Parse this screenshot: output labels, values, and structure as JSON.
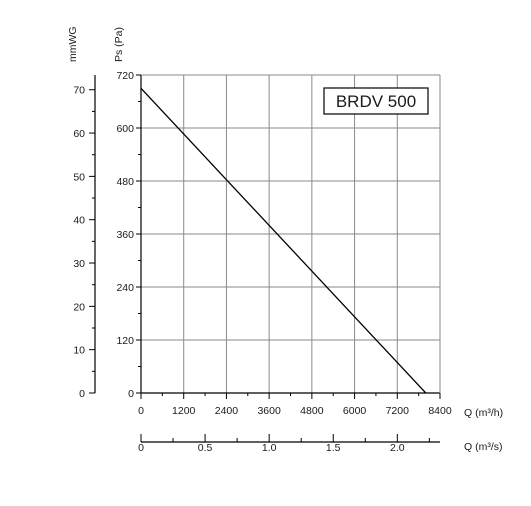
{
  "chart_data": {
    "type": "line",
    "title": "BRDV 500",
    "series": [
      {
        "values": [
          [
            0,
            690
          ],
          [
            8000,
            0
          ]
        ]
      }
    ],
    "primary_x_axis": {
      "label": "Q (m³/h)",
      "range": [
        0,
        8400
      ],
      "ticks": [
        "0",
        "1200",
        "2400",
        "3600",
        "4800",
        "6000",
        "7200",
        "8400"
      ]
    },
    "secondary_x_axis": {
      "label": "Q (m³/s)",
      "range": [
        0,
        2.333
      ],
      "ticks": [
        "0",
        "0.5",
        "1.0",
        "1.5",
        "2.0"
      ]
    },
    "primary_y_axis": {
      "label": "Ps (Pa)",
      "range": [
        0,
        720
      ],
      "ticks": [
        "0",
        "120",
        "240",
        "360",
        "480",
        "600",
        "720"
      ]
    },
    "secondary_y_axis": {
      "label": "mmWG",
      "range": [
        0,
        73.4
      ],
      "ticks": [
        "0",
        "10",
        "20",
        "30",
        "40",
        "50",
        "60",
        "70"
      ]
    },
    "grid": true,
    "legend": "none",
    "colors": {
      "curve": "#000000",
      "grid": "#8a8a8a",
      "axis": "#000000"
    }
  }
}
